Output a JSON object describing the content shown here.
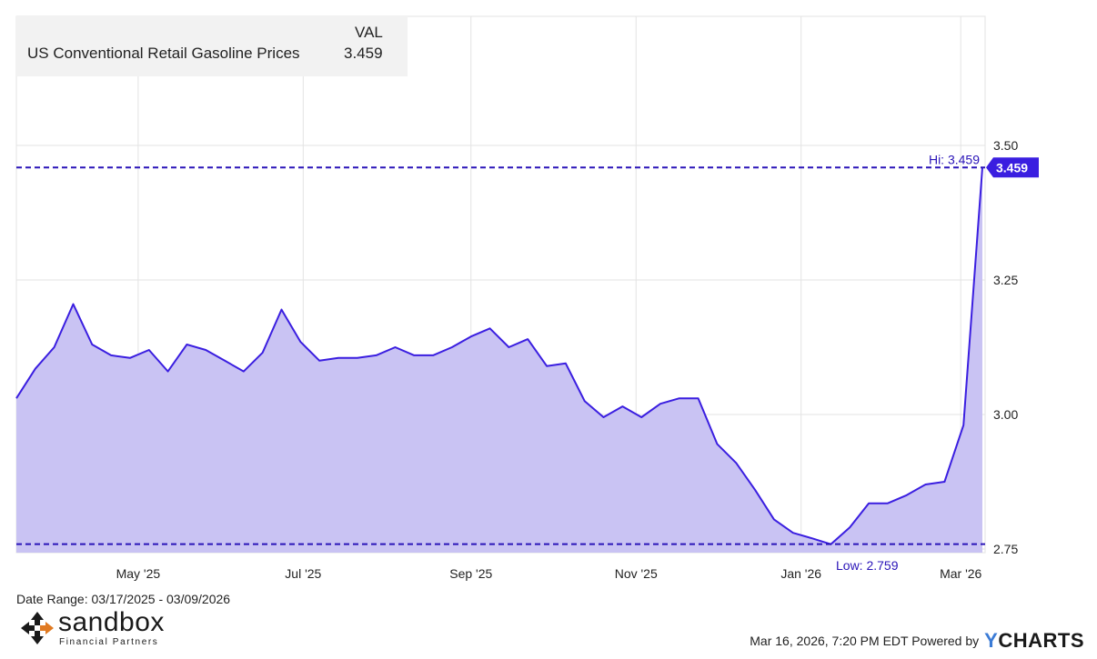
{
  "legend": {
    "header": "VAL",
    "series_label": "US Conventional Retail Gasoline Prices",
    "series_value": "3.459"
  },
  "date_range": "Date Range: 03/17/2025 - 03/09/2026",
  "logo": {
    "name": "sandbox",
    "subtitle": "Financial Partners",
    "icon": "sandbox-arrows-icon"
  },
  "footer": {
    "timestamp": "Mar 16, 2026, 7:20 PM EDT Powered by",
    "brand_y": "Y",
    "brand_rest": "CHARTS"
  },
  "colors": {
    "line": "#3a1ee0",
    "fill": "#c9c3f3",
    "dashed": "#2a14b8",
    "badge": "#3a1ee0",
    "grid": "#e3e3e3"
  },
  "chart_data": {
    "type": "area",
    "series": [
      {
        "name": "US Conventional Retail Gasoline Prices",
        "x": [
          "2025-03-17",
          "2025-03-24",
          "2025-03-31",
          "2025-04-07",
          "2025-04-14",
          "2025-04-21",
          "2025-04-28",
          "2025-05-05",
          "2025-05-12",
          "2025-05-19",
          "2025-05-26",
          "2025-06-02",
          "2025-06-09",
          "2025-06-16",
          "2025-06-23",
          "2025-06-30",
          "2025-07-07",
          "2025-07-14",
          "2025-07-21",
          "2025-07-28",
          "2025-08-04",
          "2025-08-11",
          "2025-08-18",
          "2025-08-25",
          "2025-09-01",
          "2025-09-08",
          "2025-09-15",
          "2025-09-22",
          "2025-09-29",
          "2025-10-06",
          "2025-10-13",
          "2025-10-20",
          "2025-10-27",
          "2025-11-03",
          "2025-11-10",
          "2025-11-17",
          "2025-11-24",
          "2025-12-01",
          "2025-12-08",
          "2025-12-15",
          "2025-12-22",
          "2025-12-29",
          "2026-01-05",
          "2026-01-12",
          "2026-01-19",
          "2026-01-26",
          "2026-02-02",
          "2026-02-09",
          "2026-02-16",
          "2026-02-23",
          "2026-03-02",
          "2026-03-09"
        ],
        "values": [
          3.03,
          3.085,
          3.125,
          3.205,
          3.13,
          3.11,
          3.105,
          3.12,
          3.08,
          3.13,
          3.12,
          3.1,
          3.08,
          3.115,
          3.195,
          3.135,
          3.1,
          3.105,
          3.105,
          3.11,
          3.125,
          3.11,
          3.11,
          3.125,
          3.145,
          3.16,
          3.125,
          3.14,
          3.09,
          3.095,
          3.025,
          2.995,
          3.015,
          2.995,
          3.02,
          3.03,
          3.03,
          2.945,
          2.91,
          2.86,
          2.805,
          2.78,
          2.77,
          2.759,
          2.79,
          2.835,
          2.835,
          2.85,
          2.87,
          2.875,
          2.98,
          3.459
        ]
      }
    ],
    "x_ticks": [
      "May '25",
      "Jul '25",
      "Sep '25",
      "Nov '25",
      "Jan '26",
      "Mar '26"
    ],
    "x_tick_dates": [
      "2025-05-01",
      "2025-07-01",
      "2025-09-01",
      "2025-11-01",
      "2026-01-01",
      "2026-03-01"
    ],
    "y_ticks": [
      2.75,
      3.0,
      3.25,
      3.5
    ],
    "y_tick_labels": [
      "2.75",
      "3.00",
      "3.25",
      "3.50"
    ],
    "ylim": [
      2.75,
      3.75
    ],
    "xlim": [
      "2025-03-17",
      "2026-03-09"
    ],
    "high": {
      "value": 3.459,
      "label": "Hi: 3.459"
    },
    "low": {
      "value": 2.759,
      "label": "Low: 2.759"
    },
    "last_value_label": "3.459",
    "grid": true,
    "legend_position": "top-left"
  }
}
